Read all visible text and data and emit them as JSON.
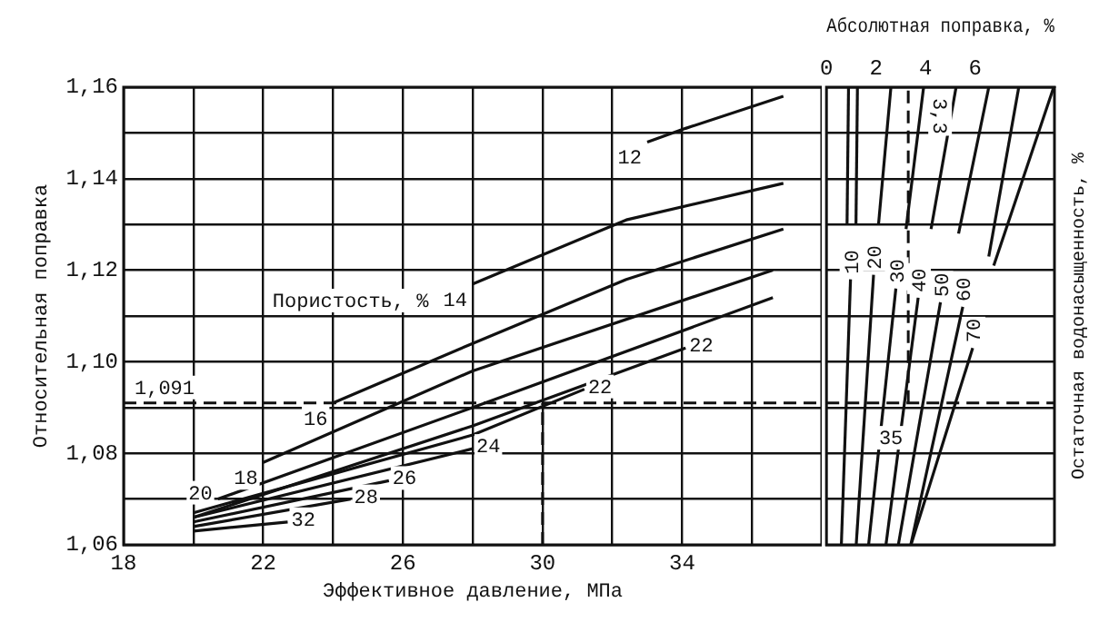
{
  "chart_data": [
    {
      "type": "line",
      "xlabel": "Эффективное давление, МПа",
      "ylabel": "Относительная поправка",
      "xlim": [
        18,
        38
      ],
      "xticks": [
        18,
        {
          "value": 20,
          "label": null
        },
        22,
        {
          "value": 24,
          "label": null
        },
        26,
        {
          "value": 28,
          "label": null
        },
        30,
        {
          "value": 32,
          "label": null
        },
        34,
        {
          "value": 36,
          "label": null
        }
      ],
      "ylim": [
        1.06,
        1.16
      ],
      "yticks": [
        {
          "value": 1.06,
          "label": "1,06"
        },
        {
          "value": 1.07,
          "label": null
        },
        {
          "value": 1.08,
          "label": "1,08"
        },
        {
          "value": 1.09,
          "label": null
        },
        {
          "value": 1.1,
          "label": "1,10"
        },
        {
          "value": 1.11,
          "label": null
        },
        {
          "value": 1.12,
          "label": "1,12"
        },
        {
          "value": 1.13,
          "label": null
        },
        {
          "value": 1.14,
          "label": "1,14"
        },
        {
          "value": 1.15,
          "label": null
        },
        {
          "value": 1.16,
          "label": "1,16"
        }
      ],
      "grid": true,
      "marker": "none",
      "line_style": "solid",
      "legend": false,
      "series": [
        {
          "name": "12",
          "color": "#111111",
          "x": [
            33.0,
            34.1,
            36.9
          ],
          "values": [
            1.148,
            1.151,
            1.158
          ]
        },
        {
          "name": "14",
          "color": "#111111",
          "x": [
            28.0,
            32.4,
            36.9
          ],
          "values": [
            1.117,
            1.131,
            1.139
          ]
        },
        {
          "name": "16",
          "color": "#111111",
          "x": [
            24.0,
            28.0,
            32.4,
            36.9
          ],
          "values": [
            1.091,
            1.104,
            1.118,
            1.129
          ]
        },
        {
          "name": "18",
          "color": "#111111",
          "x": [
            22.0,
            28.0,
            36.6
          ],
          "values": [
            1.078,
            1.098,
            1.12
          ]
        },
        {
          "name": "20",
          "color": "#111111",
          "x": [
            20.7,
            28.0,
            36.6
          ],
          "values": [
            1.07,
            1.09,
            1.114
          ]
        },
        {
          "name": "22",
          "color": "#111111",
          "x": [
            20.0,
            28.0,
            31.2
          ],
          "values": [
            1.067,
            1.084,
            1.094
          ]
        },
        {
          "name": "22",
          "color": "#111111",
          "x": [
            20.0,
            28.0,
            34.1
          ],
          "values": [
            1.066,
            1.086,
            1.103
          ]
        },
        {
          "name": "24",
          "color": "#111111",
          "x": [
            20.0,
            28.0
          ],
          "values": [
            1.066,
            1.081
          ]
        },
        {
          "name": "26",
          "color": "#111111",
          "x": [
            20.0,
            25.6
          ],
          "values": [
            1.065,
            1.074
          ]
        },
        {
          "name": "28",
          "color": "#111111",
          "x": [
            20.0,
            24.5
          ],
          "values": [
            1.064,
            1.07
          ]
        },
        {
          "name": "32",
          "color": "#111111",
          "x": [
            20.0,
            22.7
          ],
          "values": [
            1.063,
            1.065
          ]
        }
      ],
      "ref_lines": [
        {
          "axis": "y",
          "value": 1.091,
          "label": "1,091",
          "line_style": "dashed"
        },
        {
          "axis": "x",
          "value": 30,
          "line_style": "dashed"
        }
      ],
      "annotations": [
        "Пористость, %"
      ]
    },
    {
      "type": "line",
      "xlabel": "Абсолютная поправка, %",
      "y2label": "Остаточная водонасыщенность, %",
      "xlim": [
        0,
        9.2
      ],
      "xticks": [
        0,
        2,
        4,
        6
      ],
      "ylim": [
        1.06,
        1.16
      ],
      "yticks": [
        {
          "value": 1.06,
          "label": null
        },
        {
          "value": 1.07,
          "label": null
        },
        {
          "value": 1.08,
          "label": null
        },
        {
          "value": 1.09,
          "label": null
        },
        {
          "value": 1.1,
          "label": null
        },
        {
          "value": 1.11,
          "label": null
        },
        {
          "value": 1.12,
          "label": null
        },
        {
          "value": 1.13,
          "label": null
        },
        {
          "value": 1.14,
          "label": null
        },
        {
          "value": 1.15,
          "label": null
        },
        {
          "value": 1.16,
          "label": null
        }
      ],
      "tick_labels": "x",
      "grid": "y",
      "marker": "none",
      "line_style": "solid",
      "legend": false,
      "series": [
        {
          "name": "10",
          "color": "#111111",
          "x": [
            0.6,
            0.97
          ],
          "values": [
            1.06,
            1.118
          ]
        },
        {
          "name": "20",
          "color": "#111111",
          "x": [
            1.2,
            1.9
          ],
          "values": [
            1.06,
            1.119
          ]
        },
        {
          "name": "30",
          "color": "#111111",
          "x": [
            1.7,
            2.8
          ],
          "values": [
            1.06,
            1.116
          ]
        },
        {
          "name": "40",
          "color": "#111111",
          "x": [
            2.4,
            3.7
          ],
          "values": [
            1.06,
            1.114
          ]
        },
        {
          "name": "50",
          "color": "#111111",
          "x": [
            2.9,
            4.6
          ],
          "values": [
            1.06,
            1.113
          ]
        },
        {
          "name": "60",
          "color": "#111111",
          "x": [
            3.4,
            5.5
          ],
          "values": [
            1.06,
            1.112
          ]
        },
        {
          "name": "70",
          "color": "#111111",
          "x": [
            3.41,
            5.9
          ],
          "values": [
            1.06,
            1.103
          ]
        },
        {
          "color": "#111111",
          "x": [
            0.83,
            0.89
          ],
          "values": [
            1.13,
            1.16
          ]
        },
        {
          "color": "#111111",
          "x": [
            1.19,
            1.25
          ],
          "values": [
            1.13,
            1.16
          ]
        },
        {
          "color": "#111111",
          "x": [
            2.1,
            2.6
          ],
          "values": [
            1.13,
            1.16
          ]
        },
        {
          "color": "#111111",
          "x": [
            3.21,
            3.92
          ],
          "values": [
            1.129,
            1.16
          ]
        },
        {
          "color": "#111111",
          "x": [
            4.22,
            5.23
          ],
          "values": [
            1.129,
            1.16
          ]
        },
        {
          "color": "#111111",
          "x": [
            5.33,
            6.55
          ],
          "values": [
            1.128,
            1.16
          ]
        },
        {
          "color": "#111111",
          "x": [
            6.55,
            7.76
          ],
          "values": [
            1.123,
            1.16
          ]
        },
        {
          "color": "#111111",
          "x": [
            6.75,
            9.17
          ],
          "values": [
            1.121,
            1.16
          ]
        }
      ],
      "ref_lines": [
        {
          "axis": "y",
          "value": 1.091,
          "line_style": "dashed"
        },
        {
          "axis": "x",
          "value": 3.3,
          "label": "3,3",
          "line_style": "dashed"
        }
      ],
      "annotations": [
        "35"
      ]
    }
  ]
}
